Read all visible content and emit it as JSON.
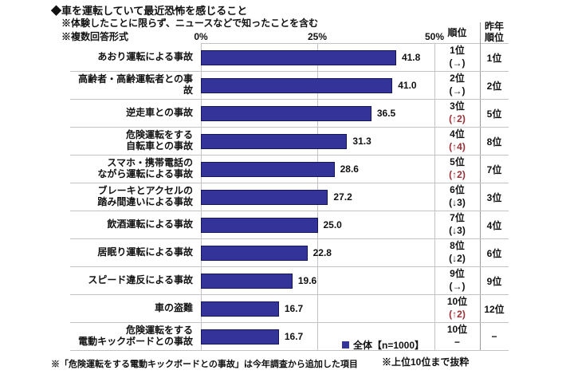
{
  "colors": {
    "bar": "#333399",
    "grid": "#c3c3c3",
    "rank_up": "#9e2e34"
  },
  "header": {
    "title": "◆車を運転していて最近恐怖を感じること",
    "note1": "※体験したことに限らず、ニュースなどで知ったことを含む",
    "note2": "※複数回答形式",
    "tick0": "0%",
    "tick25": "25%",
    "tick50": "50%",
    "rank_col": "順位",
    "last_year_col": "昨年\n順位"
  },
  "legend": {
    "label": "全体【n=1000】"
  },
  "footnotes": {
    "left": "※「危険運転をする電動キックボードとの事故」は今年調査から追加した項目",
    "right": "※上位10位まで抜粋"
  },
  "chart_data": {
    "type": "bar",
    "orientation": "horizontal",
    "title": "車を運転していて最近恐怖を感じること",
    "categories": [
      "あおり運転による事故",
      "高齢者・高齢運転者との事故",
      "逆走車との事故",
      "危険運転をする自転車との事故",
      "スマホ・携帯電話のながら運転による事故",
      "ブレーキとアクセルの踏み間違いによる事故",
      "飲酒運転による事故",
      "居眠り運転による事故",
      "スピード違反による事故",
      "車の盗難",
      "危険運転をする電動キックボードとの事故"
    ],
    "values": [
      41.8,
      41.0,
      36.5,
      31.3,
      28.6,
      27.2,
      25.0,
      22.8,
      19.6,
      16.7,
      16.7
    ],
    "series_name": "全体【n=1000】",
    "xlim": [
      0,
      50
    ],
    "xticks": [
      "0%",
      "25%",
      "50%"
    ],
    "grid": true,
    "legend_position": "bottom-right"
  },
  "rows": [
    {
      "label": "あおり運転による事故",
      "value_label": "41.8",
      "rank": "1位",
      "change": "(→)",
      "change_dir": "same",
      "last_year": "1位"
    },
    {
      "label": "高齢者・高齢運転者との事故",
      "value_label": "41.0",
      "rank": "2位",
      "change": "(→)",
      "change_dir": "same",
      "last_year": "2位"
    },
    {
      "label": "逆走車との事故",
      "value_label": "36.5",
      "rank": "3位",
      "change": "(↑2)",
      "change_dir": "up",
      "last_year": "5位"
    },
    {
      "label": "危険運転をする\n自転車との事故",
      "value_label": "31.3",
      "rank": "4位",
      "change": "(↑4)",
      "change_dir": "up",
      "last_year": "8位"
    },
    {
      "label": "スマホ・携帯電話の\nながら運転による事故",
      "value_label": "28.6",
      "rank": "5位",
      "change": "(↑2)",
      "change_dir": "up",
      "last_year": "7位"
    },
    {
      "label": "ブレーキとアクセルの\n踏み間違いによる事故",
      "value_label": "27.2",
      "rank": "6位",
      "change": "(↓3)",
      "change_dir": "down",
      "last_year": "3位"
    },
    {
      "label": "飲酒運転による事故",
      "value_label": "25.0",
      "rank": "7位",
      "change": "(↓3)",
      "change_dir": "down",
      "last_year": "4位"
    },
    {
      "label": "居眠り運転による事故",
      "value_label": "22.8",
      "rank": "8位",
      "change": "(↓2)",
      "change_dir": "down",
      "last_year": "6位"
    },
    {
      "label": "スピード違反による事故",
      "value_label": "19.6",
      "rank": "9位",
      "change": "(→)",
      "change_dir": "same",
      "last_year": "9位"
    },
    {
      "label": "車の盗難",
      "value_label": "16.7",
      "rank": "10位",
      "change": "(↑2)",
      "change_dir": "up",
      "last_year": "12位"
    },
    {
      "label": "危険運転をする\n電動キックボードとの事故",
      "value_label": "16.7",
      "rank": "10位",
      "change": "−",
      "change_dir": "none",
      "last_year": "−"
    }
  ]
}
